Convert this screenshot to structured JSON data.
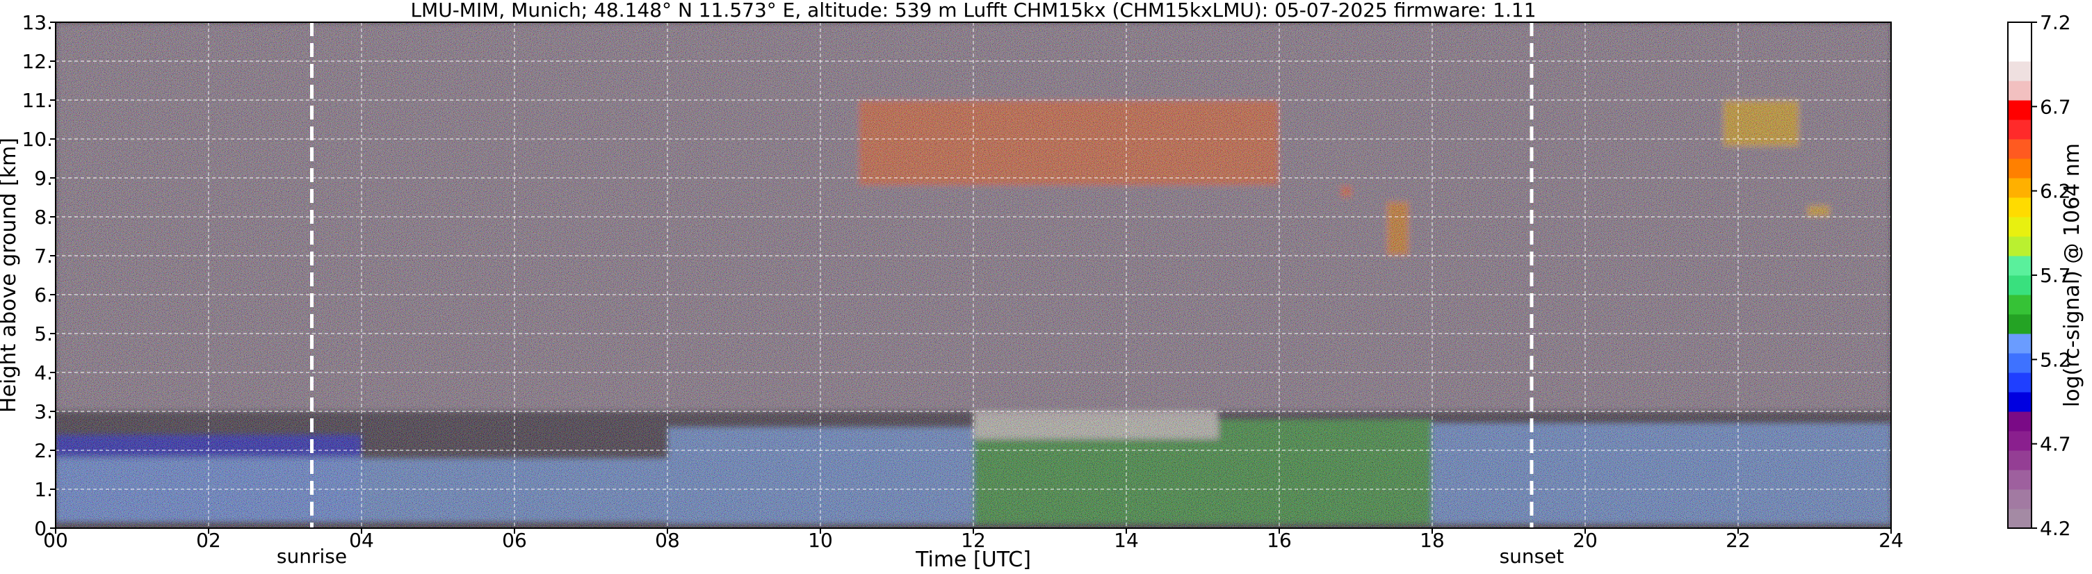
{
  "chart_data": {
    "type": "heatmap",
    "title": "LMU-MIM, Munich; 48.148° N 11.573° E, altitude: 539 m    Lufft CHM15kx (CHM15kxLMU): 05-07-2025    firmware: 1.11",
    "xlabel": "Time [UTC]",
    "ylabel": "Height above ground [km]",
    "x_range": [
      0,
      24
    ],
    "y_range": [
      0,
      13
    ],
    "x_ticks": [
      "00",
      "02",
      "04",
      "06",
      "08",
      "10",
      "12",
      "14",
      "16",
      "18",
      "20",
      "22",
      "24"
    ],
    "y_ticks": [
      "0.",
      "1.",
      "2.",
      "3.",
      "4.",
      "5.",
      "6.",
      "7.",
      "8.",
      "9.",
      "10.",
      "11.",
      "12.",
      "13."
    ],
    "grid": true,
    "events": [
      {
        "label": "sunrise",
        "time": 3.35
      },
      {
        "label": "sunset",
        "time": 19.3
      }
    ],
    "colorbar": {
      "label": "log(rc-signal) @ 1064 nm",
      "range": [
        4.2,
        7.2
      ],
      "ticks": [
        "4.2",
        "4.7",
        "5.2",
        "5.7",
        "6.2",
        "6.7",
        "7.2"
      ],
      "colors": [
        "#a48aa4",
        "#a27aa2",
        "#9e609e",
        "#943e94",
        "#8a1f8e",
        "#7a0a86",
        "#0000e0",
        "#1f3fff",
        "#3e72ff",
        "#6a9cff",
        "#24a324",
        "#36c236",
        "#39e07e",
        "#5af09c",
        "#baf030",
        "#e8f010",
        "#ffdb00",
        "#ffb000",
        "#ff8000",
        "#ff5a20",
        "#ff2a2a",
        "#ff0000",
        "#f2c0c0",
        "#efe0e0",
        "#ffffff",
        "#ffffff"
      ]
    },
    "features": [
      {
        "kind": "background",
        "t0": 0,
        "t1": 24,
        "h0": 3.0,
        "h1": 13,
        "value": 4.3
      },
      {
        "kind": "boundary-layer",
        "t0": 0,
        "t1": 4,
        "h0": 0.15,
        "h1": 2.4,
        "value": 4.9
      },
      {
        "kind": "boundary-layer",
        "t0": 0,
        "t1": 8,
        "h0": 0.15,
        "h1": 1.8,
        "value": 5.25
      },
      {
        "kind": "boundary-layer",
        "t0": 8,
        "t1": 12,
        "h0": 0.1,
        "h1": 2.6,
        "value": 5.35
      },
      {
        "kind": "boundary-layer",
        "t0": 12,
        "t1": 18,
        "h0": 0.1,
        "h1": 2.8,
        "value": 5.45
      },
      {
        "kind": "boundary-layer",
        "t0": 18,
        "t1": 24,
        "h0": 0.1,
        "h1": 2.7,
        "value": 5.3
      },
      {
        "kind": "cloud",
        "t0": 12.0,
        "t1": 15.2,
        "h0": 2.3,
        "h1": 3.0,
        "value": 6.9
      },
      {
        "kind": "cirrus",
        "t0": 10.5,
        "t1": 16.0,
        "h0": 8.8,
        "h1": 11.0,
        "value": 6.4
      },
      {
        "kind": "cirrus",
        "t0": 17.4,
        "t1": 17.7,
        "h0": 7.0,
        "h1": 8.4,
        "value": 6.3
      },
      {
        "kind": "cirrus",
        "t0": 16.8,
        "t1": 16.95,
        "h0": 8.5,
        "h1": 8.8,
        "value": 6.5
      },
      {
        "kind": "cirrus",
        "t0": 21.8,
        "t1": 22.8,
        "h0": 9.8,
        "h1": 11.0,
        "value": 6.2
      },
      {
        "kind": "cirrus",
        "t0": 22.9,
        "t1": 23.2,
        "h0": 8.0,
        "h1": 8.3,
        "value": 6.2
      }
    ]
  }
}
